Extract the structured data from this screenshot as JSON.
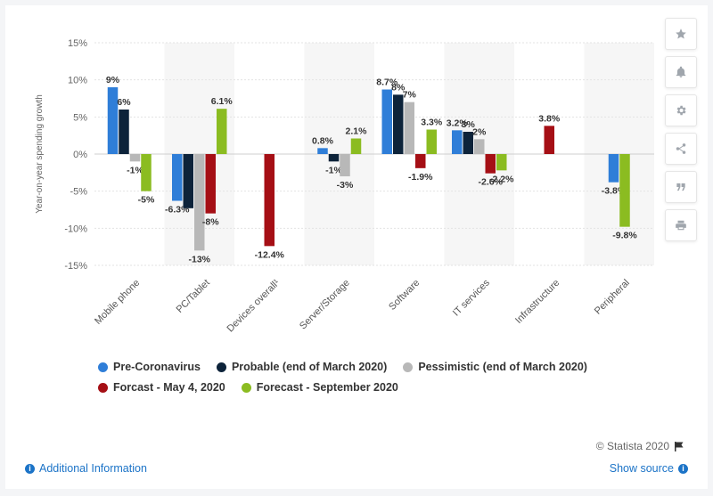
{
  "chart_data": {
    "type": "bar",
    "ylabel": "Year-on-year spending growth",
    "ylim": [
      -15,
      15
    ],
    "y_ticks": [
      15,
      10,
      5,
      0,
      -5,
      -10,
      -15
    ],
    "y_tick_labels": [
      "15%",
      "10%",
      "5%",
      "0%",
      "-5%",
      "-10%",
      "-15%"
    ],
    "grid": true,
    "legend_position": "bottom",
    "categories": [
      "Mobile phone",
      "PC/Tablet",
      "Devices overall¹",
      "Server/Storage",
      "Software",
      "IT services",
      "Infrastructure",
      "Peripheral"
    ],
    "series": [
      {
        "name": "Pre-Coronavirus",
        "color": "#2f7ed8",
        "values": [
          9,
          -6.3,
          null,
          0.8,
          8.7,
          3.2,
          null,
          -3.8
        ],
        "labels": [
          "9%",
          "-6.3%",
          "",
          "0.8%",
          "8.7%",
          "3.2%",
          "",
          "-3.8%"
        ]
      },
      {
        "name": "Probable (end of March 2020)",
        "color": "#0d233a",
        "values": [
          6,
          -7.3,
          null,
          -1,
          8,
          3,
          null,
          null
        ],
        "labels": [
          "6%",
          "",
          "",
          "-1%",
          "8%",
          "3%",
          "",
          ""
        ]
      },
      {
        "name": "Pessimistic (end of March 2020)",
        "color": "#b8b8b8",
        "values": [
          -1,
          -13,
          null,
          -3,
          7,
          2,
          null,
          null
        ],
        "labels": [
          "-1%",
          "-13%",
          "",
          "-3%",
          "7%",
          "2%",
          "",
          ""
        ]
      },
      {
        "name": "Forcast - May 4, 2020",
        "color": "#a50f15",
        "values": [
          null,
          -8,
          -12.4,
          null,
          -1.9,
          -2.6,
          3.8,
          null
        ],
        "labels": [
          "",
          "-8%",
          "-12.4%",
          "",
          "-1.9%",
          "-2.6%",
          "3.8%",
          ""
        ]
      },
      {
        "name": "Forecast - September 2020",
        "color": "#8bbc21",
        "values": [
          -5,
          6.1,
          null,
          2.1,
          3.3,
          -2.2,
          null,
          -9.8
        ],
        "labels": [
          "-5%",
          "6.1%",
          "",
          "2.1%",
          "3.3%",
          "-2.2%",
          "",
          "-9.8%"
        ]
      }
    ]
  },
  "toolbar": {
    "icons": [
      "star-icon",
      "bell-icon",
      "gear-icon",
      "share-icon",
      "quote-icon",
      "print-icon"
    ]
  },
  "footer": {
    "credit": "© Statista 2020",
    "additional_info": "Additional Information",
    "show_source": "Show source"
  }
}
